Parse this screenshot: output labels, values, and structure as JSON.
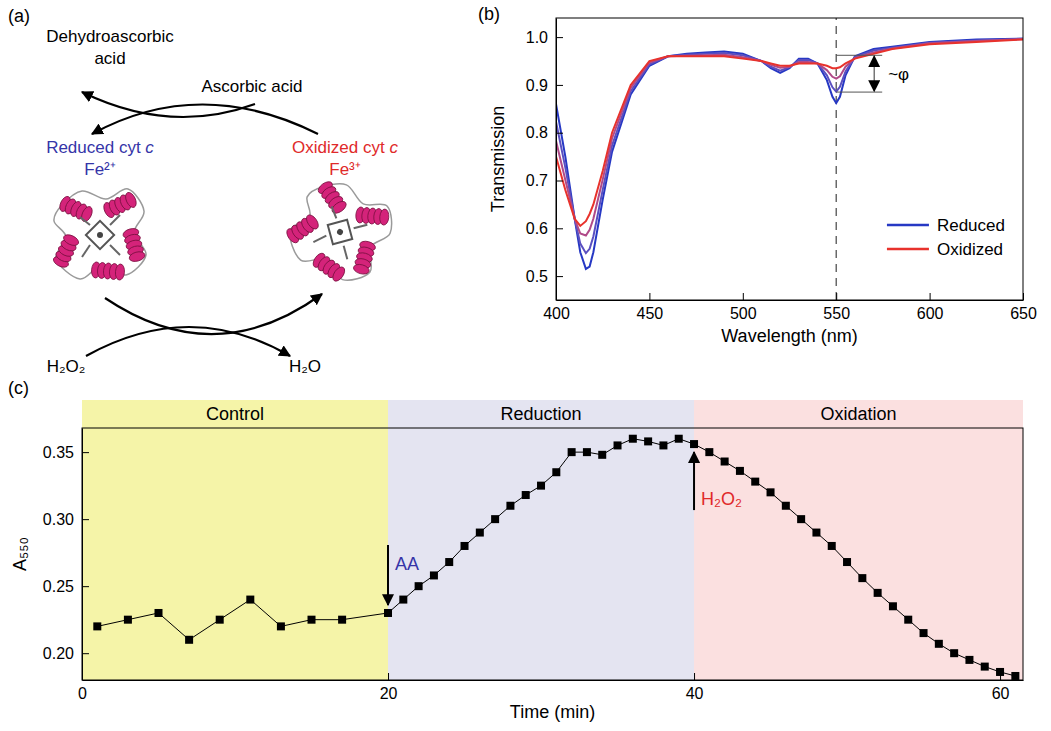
{
  "diagram": {
    "panel_label": "(a)",
    "oxidation_of_ascorbic_acid": {
      "from": "Ascorbic acid",
      "to": "Dehydroascorbic acid"
    },
    "reduction_of_h2o2": {
      "from": "H₂O₂",
      "to": "H₂O"
    },
    "reduced": {
      "label": "Reduced cyt c",
      "state": "Fe²⁺",
      "color": "#3535a8"
    },
    "oxidized": {
      "label": "Oxidized cyt c",
      "state": "Fe³⁺",
      "color": "#e02a2a"
    }
  },
  "chart_data": [
    {
      "type": "line",
      "panel_label": "(b)",
      "x_label": "Wavelength (nm)",
      "y_label": "Transmission",
      "x": [
        400,
        405,
        410,
        413,
        416,
        418,
        420,
        425,
        430,
        440,
        450,
        460,
        470,
        480,
        490,
        500,
        510,
        515,
        520,
        525,
        530,
        535,
        540,
        545,
        548,
        550,
        552,
        555,
        560,
        570,
        580,
        600,
        625,
        650
      ],
      "series": [
        {
          "name": "Reduced",
          "color": "#2638c4",
          "values": [
            0.86,
            0.75,
            0.62,
            0.55,
            0.515,
            0.52,
            0.55,
            0.66,
            0.76,
            0.88,
            0.94,
            0.96,
            0.965,
            0.968,
            0.97,
            0.965,
            0.95,
            0.935,
            0.925,
            0.935,
            0.955,
            0.955,
            0.945,
            0.91,
            0.875,
            0.862,
            0.875,
            0.92,
            0.96,
            0.975,
            0.98,
            0.99,
            0.995,
            0.997
          ]
        },
        {
          "name": null,
          "color": "#5a4fc0",
          "values": [
            0.823,
            0.727,
            0.62,
            0.568,
            0.548,
            0.557,
            0.583,
            0.68,
            0.773,
            0.887,
            0.943,
            0.96,
            0.963,
            0.965,
            0.967,
            0.962,
            0.95,
            0.938,
            0.93,
            0.937,
            0.952,
            0.952,
            0.945,
            0.92,
            0.895,
            0.886,
            0.896,
            0.928,
            0.958,
            0.972,
            0.978,
            0.988,
            0.993,
            0.996
          ]
        },
        {
          "name": null,
          "color": "#b04a88",
          "values": [
            0.783,
            0.701,
            0.62,
            0.589,
            0.585,
            0.597,
            0.62,
            0.702,
            0.788,
            0.894,
            0.947,
            0.96,
            0.961,
            0.962,
            0.963,
            0.958,
            0.95,
            0.942,
            0.936,
            0.938,
            0.948,
            0.948,
            0.945,
            0.931,
            0.917,
            0.913,
            0.918,
            0.938,
            0.956,
            0.968,
            0.976,
            0.987,
            0.992,
            0.996
          ]
        },
        {
          "name": "Oxidized",
          "color": "#e8322c",
          "values": [
            0.75,
            0.68,
            0.62,
            0.605,
            0.615,
            0.63,
            0.65,
            0.72,
            0.8,
            0.9,
            0.95,
            0.96,
            0.96,
            0.96,
            0.96,
            0.955,
            0.95,
            0.945,
            0.94,
            0.94,
            0.945,
            0.945,
            0.945,
            0.94,
            0.935,
            0.935,
            0.937,
            0.945,
            0.955,
            0.965,
            0.975,
            0.985,
            0.99,
            0.995
          ]
        }
      ],
      "xlim": [
        400,
        650
      ],
      "xticks": [
        400,
        450,
        500,
        550,
        600,
        650
      ],
      "ylim": [
        0.45,
        1.04
      ],
      "yticks": [
        0.5,
        0.6,
        0.7,
        0.8,
        0.9,
        {
          "value": 1,
          "label": "1.0"
        }
      ],
      "legend": "lower right",
      "grid": false,
      "annotations": [
        {
          "text": "~φ",
          "x": 550,
          "y_from": 0.962,
          "y_to": 0.885,
          "line_style": "dashed"
        }
      ]
    },
    {
      "type": "line",
      "panel_label": "(c)",
      "x_label": "Time (min)",
      "y_label": "A₅₅₀",
      "x": [
        1,
        3,
        5,
        7,
        9,
        11,
        13,
        15,
        17,
        20,
        21,
        22,
        23,
        24,
        25,
        26,
        27,
        28,
        29,
        30,
        31,
        32,
        33,
        34,
        35,
        36,
        37,
        38,
        39,
        40,
        41,
        42,
        43,
        44,
        45,
        46,
        47,
        48,
        49,
        50,
        51,
        52,
        53,
        54,
        55,
        56,
        57,
        58,
        59,
        60,
        61
      ],
      "values": [
        0.22,
        0.225,
        0.23,
        0.21,
        0.225,
        0.24,
        0.22,
        0.225,
        0.225,
        0.23,
        0.24,
        0.25,
        0.258,
        0.268,
        0.28,
        0.29,
        0.3,
        0.31,
        0.318,
        0.325,
        0.335,
        0.35,
        0.35,
        0.348,
        0.355,
        0.36,
        0.358,
        0.355,
        0.36,
        0.356,
        0.35,
        0.343,
        0.336,
        0.328,
        0.32,
        0.31,
        0.3,
        0.29,
        0.28,
        0.268,
        0.256,
        0.245,
        0.235,
        0.225,
        0.215,
        0.207,
        0.2,
        0.195,
        0.19,
        0.186,
        0.183
      ],
      "color": "#000000",
      "marker": "square",
      "xlim": [
        0,
        61.5
      ],
      "xticks": [
        0,
        20,
        40,
        60
      ],
      "ylim": [
        0.18,
        0.368
      ],
      "yticks": [
        {
          "value": 0.2,
          "label": "0.20"
        },
        0.25,
        {
          "value": 0.3,
          "label": "0.30"
        },
        0.35
      ],
      "grid": false,
      "regions": [
        {
          "label": "Control",
          "start": 0,
          "end": 20,
          "color": "#f5f4a8"
        },
        {
          "label": "Reduction",
          "start": 20,
          "end": 40,
          "color": "#e4e4f1"
        },
        {
          "label": "Oxidation",
          "start": 40,
          "end": 61.5,
          "color": "#fbe0e0"
        }
      ],
      "annotations": [
        {
          "text": "AA",
          "x": 20,
          "y": 0.23,
          "color": "#3535a8",
          "arrow": "down"
        },
        {
          "text": "H₂O₂",
          "x": 40,
          "y": 0.356,
          "color": "#e02a2a",
          "arrow": "up"
        }
      ]
    }
  ]
}
